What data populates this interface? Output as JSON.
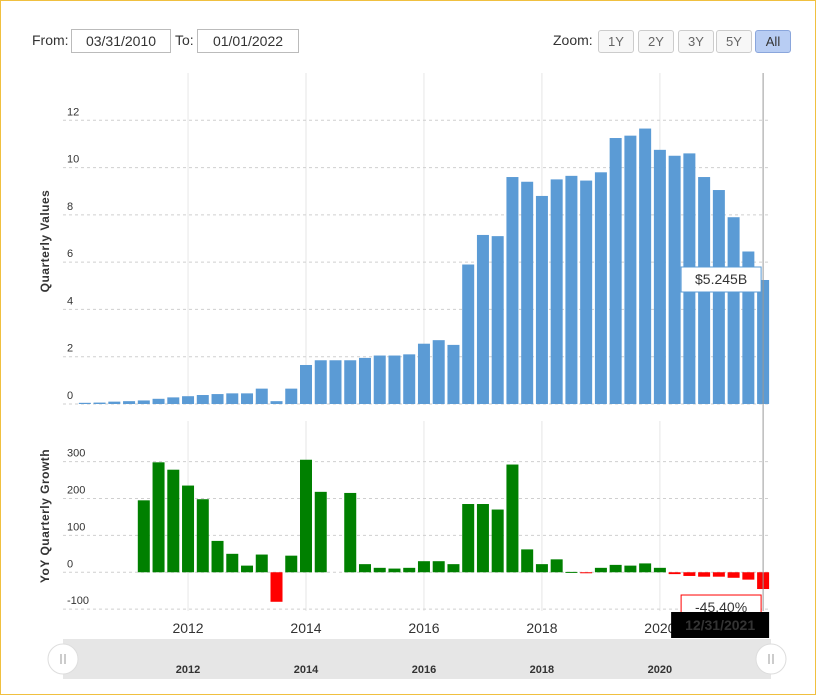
{
  "controls": {
    "from_label": "From:",
    "from": "03/31/2010",
    "to_label": "To:",
    "to": "01/01/2022",
    "zoom_label": "Zoom:",
    "zoom": [
      "1Y",
      "2Y",
      "3Y",
      "5Y",
      "All"
    ],
    "zoom_active": "All"
  },
  "chart_data": [
    {
      "type": "bar",
      "y_label": "Quarterly Values",
      "x": [
        2010.25,
        2010.5,
        2010.75,
        2011,
        2011.25,
        2011.5,
        2011.75,
        2012,
        2012.25,
        2012.5,
        2012.75,
        2013,
        2013.25,
        2013.5,
        2013.75,
        2014,
        2014.25,
        2014.5,
        2014.75,
        2015,
        2015.25,
        2015.5,
        2015.75,
        2016,
        2016.25,
        2016.5,
        2016.75,
        2017,
        2017.25,
        2017.5,
        2017.75,
        2018,
        2018.25,
        2018.5,
        2018.75,
        2019,
        2019.25,
        2019.5,
        2019.75,
        2020,
        2020.25,
        2020.5,
        2020.75,
        2021,
        2021.25,
        2021.5,
        2021.75
      ],
      "values": [
        0.05,
        0.06,
        0.1,
        0.12,
        0.15,
        0.22,
        0.28,
        0.33,
        0.38,
        0.42,
        0.45,
        0.45,
        0.65,
        0.12,
        0.65,
        1.65,
        1.85,
        1.85,
        1.85,
        1.95,
        2.05,
        2.05,
        2.1,
        2.55,
        2.7,
        2.5,
        5.9,
        7.15,
        7.1,
        9.6,
        9.4,
        8.8,
        9.5,
        9.65,
        9.45,
        9.8,
        11.25,
        11.35,
        11.65,
        10.75,
        10.5,
        10.6,
        9.6,
        9.05,
        7.9,
        6.45,
        5.245
      ],
      "value_labels": [
        null,
        null,
        null,
        null,
        null,
        null,
        null,
        null,
        null,
        null,
        null,
        null,
        null,
        null,
        null,
        null,
        null,
        null,
        null,
        null,
        null,
        null,
        null,
        null,
        null,
        null,
        null,
        null,
        null,
        null,
        null,
        null,
        null,
        null,
        null,
        null,
        null,
        null,
        null,
        null,
        null,
        null,
        null,
        null,
        null,
        null,
        "$5.245B"
      ],
      "color": "#5b9bd5",
      "xlim": [
        2009.88,
        2021.85
      ],
      "xticks": [
        2012,
        2014,
        2016,
        2018,
        2020
      ],
      "ylim": [
        0,
        14
      ],
      "yticks": [
        0,
        2,
        4,
        6,
        8,
        10,
        12
      ],
      "grid": true
    },
    {
      "type": "bar",
      "y_label": "YoY Quarterly Growth",
      "x": [
        2010.25,
        2010.5,
        2010.75,
        2011,
        2011.25,
        2011.5,
        2011.75,
        2012,
        2012.25,
        2012.5,
        2012.75,
        2013,
        2013.25,
        2013.5,
        2013.75,
        2014,
        2014.25,
        2014.5,
        2014.75,
        2015,
        2015.25,
        2015.5,
        2015.75,
        2016,
        2016.25,
        2016.5,
        2016.75,
        2017,
        2017.25,
        2017.5,
        2017.75,
        2018,
        2018.25,
        2018.5,
        2018.75,
        2019,
        2019.25,
        2019.5,
        2019.75,
        2020,
        2020.25,
        2020.5,
        2020.75,
        2021,
        2021.25,
        2021.5,
        2021.75
      ],
      "values": [
        null,
        null,
        null,
        null,
        195,
        298,
        278,
        235,
        198,
        85,
        50,
        18,
        48,
        -80,
        45,
        305,
        218,
        null,
        215,
        22,
        12,
        10,
        12,
        30,
        30,
        22,
        185,
        185,
        170,
        292,
        62,
        22,
        35,
        1,
        -2,
        12,
        20,
        18,
        24,
        12,
        -5,
        -10,
        -12,
        -12,
        -15,
        -20,
        -45.4
      ],
      "value_labels": [
        null,
        null,
        null,
        null,
        null,
        null,
        null,
        null,
        null,
        null,
        null,
        null,
        null,
        null,
        null,
        null,
        null,
        null,
        null,
        null,
        null,
        null,
        null,
        null,
        null,
        null,
        null,
        null,
        null,
        null,
        null,
        null,
        null,
        null,
        null,
        null,
        null,
        null,
        null,
        null,
        null,
        null,
        null,
        null,
        null,
        null,
        "-45.40%"
      ],
      "color": "#008000",
      "negative_color": "#ff0000",
      "xlim": [
        2009.88,
        2021.85
      ],
      "xticks": [
        2012,
        2014,
        2016,
        2018,
        2020
      ],
      "ylim": [
        -105,
        410
      ],
      "yticks": [
        -100,
        0,
        100,
        200,
        300
      ],
      "grid": true,
      "crosshair_label": "12/31/2021"
    }
  ],
  "navigator": {
    "labels": [
      2012,
      2014,
      2016,
      2018,
      2020
    ]
  }
}
